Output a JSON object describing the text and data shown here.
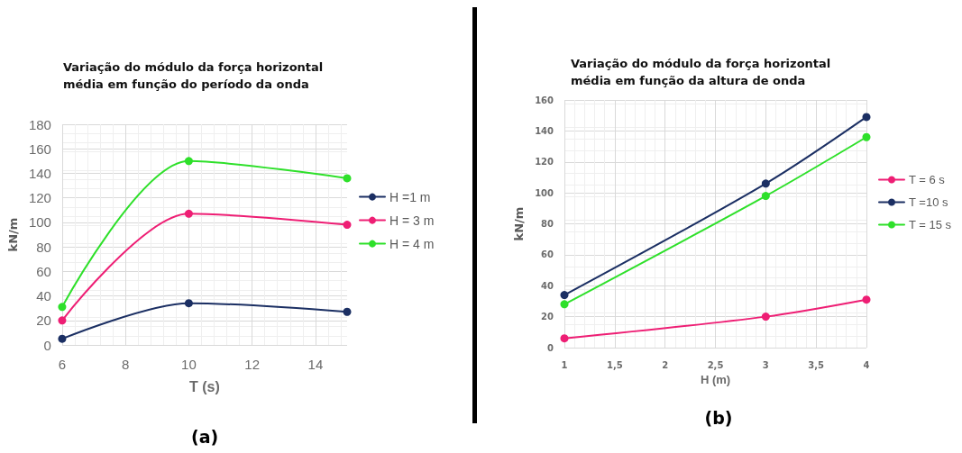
{
  "chart_data": [
    {
      "type": "line",
      "title": "Variação do módulo da força horizontal média em função do período da onda",
      "xlabel": "T (s)",
      "ylabel": "kN/m",
      "x": [
        6,
        10,
        15
      ],
      "series": [
        {
          "name": "H =1 m",
          "color": "#1b2f63",
          "values": [
            5,
            34,
            27
          ]
        },
        {
          "name": "H = 3 m",
          "color": "#ee1e74",
          "values": [
            20,
            107,
            98
          ]
        },
        {
          "name": "H = 4 m",
          "color": "#2ee02a",
          "values": [
            31,
            150,
            136
          ]
        }
      ],
      "xlim": [
        6,
        15
      ],
      "xticks": [
        6,
        8,
        10,
        12,
        14
      ],
      "ylim": [
        0,
        180
      ],
      "yticks": [
        0,
        20,
        40,
        60,
        80,
        100,
        120,
        140,
        160,
        180
      ],
      "grid": true,
      "legend": "right",
      "marker": "circle",
      "annotations": [
        "(a)"
      ]
    },
    {
      "type": "line",
      "title": "Variação do módulo da força horizontal média em função da altura de onda",
      "xlabel": "H (m)",
      "ylabel": "kN/m",
      "x": [
        1,
        3,
        4
      ],
      "series": [
        {
          "name": "T = 6 s",
          "color": "#ee1e74",
          "values": [
            6,
            20,
            31
          ]
        },
        {
          "name": "T =10 s",
          "color": "#1b2f63",
          "values": [
            34,
            106,
            149
          ]
        },
        {
          "name": "T = 15 s",
          "color": "#2ee02a",
          "values": [
            28,
            98,
            136
          ]
        }
      ],
      "xlim": [
        1,
        4
      ],
      "xticks": [
        1,
        {
          "value": 1.5,
          "label": "1,5"
        },
        2,
        {
          "value": 2.5,
          "label": "2,5"
        },
        3,
        {
          "value": 3.5,
          "label": "3,5"
        },
        4
      ],
      "ylim": [
        0,
        160
      ],
      "yticks": [
        0,
        20,
        40,
        60,
        80,
        100,
        120,
        140,
        160
      ],
      "grid": true,
      "legend": "right",
      "marker": "circle",
      "annotations": [
        "(b)"
      ]
    }
  ]
}
